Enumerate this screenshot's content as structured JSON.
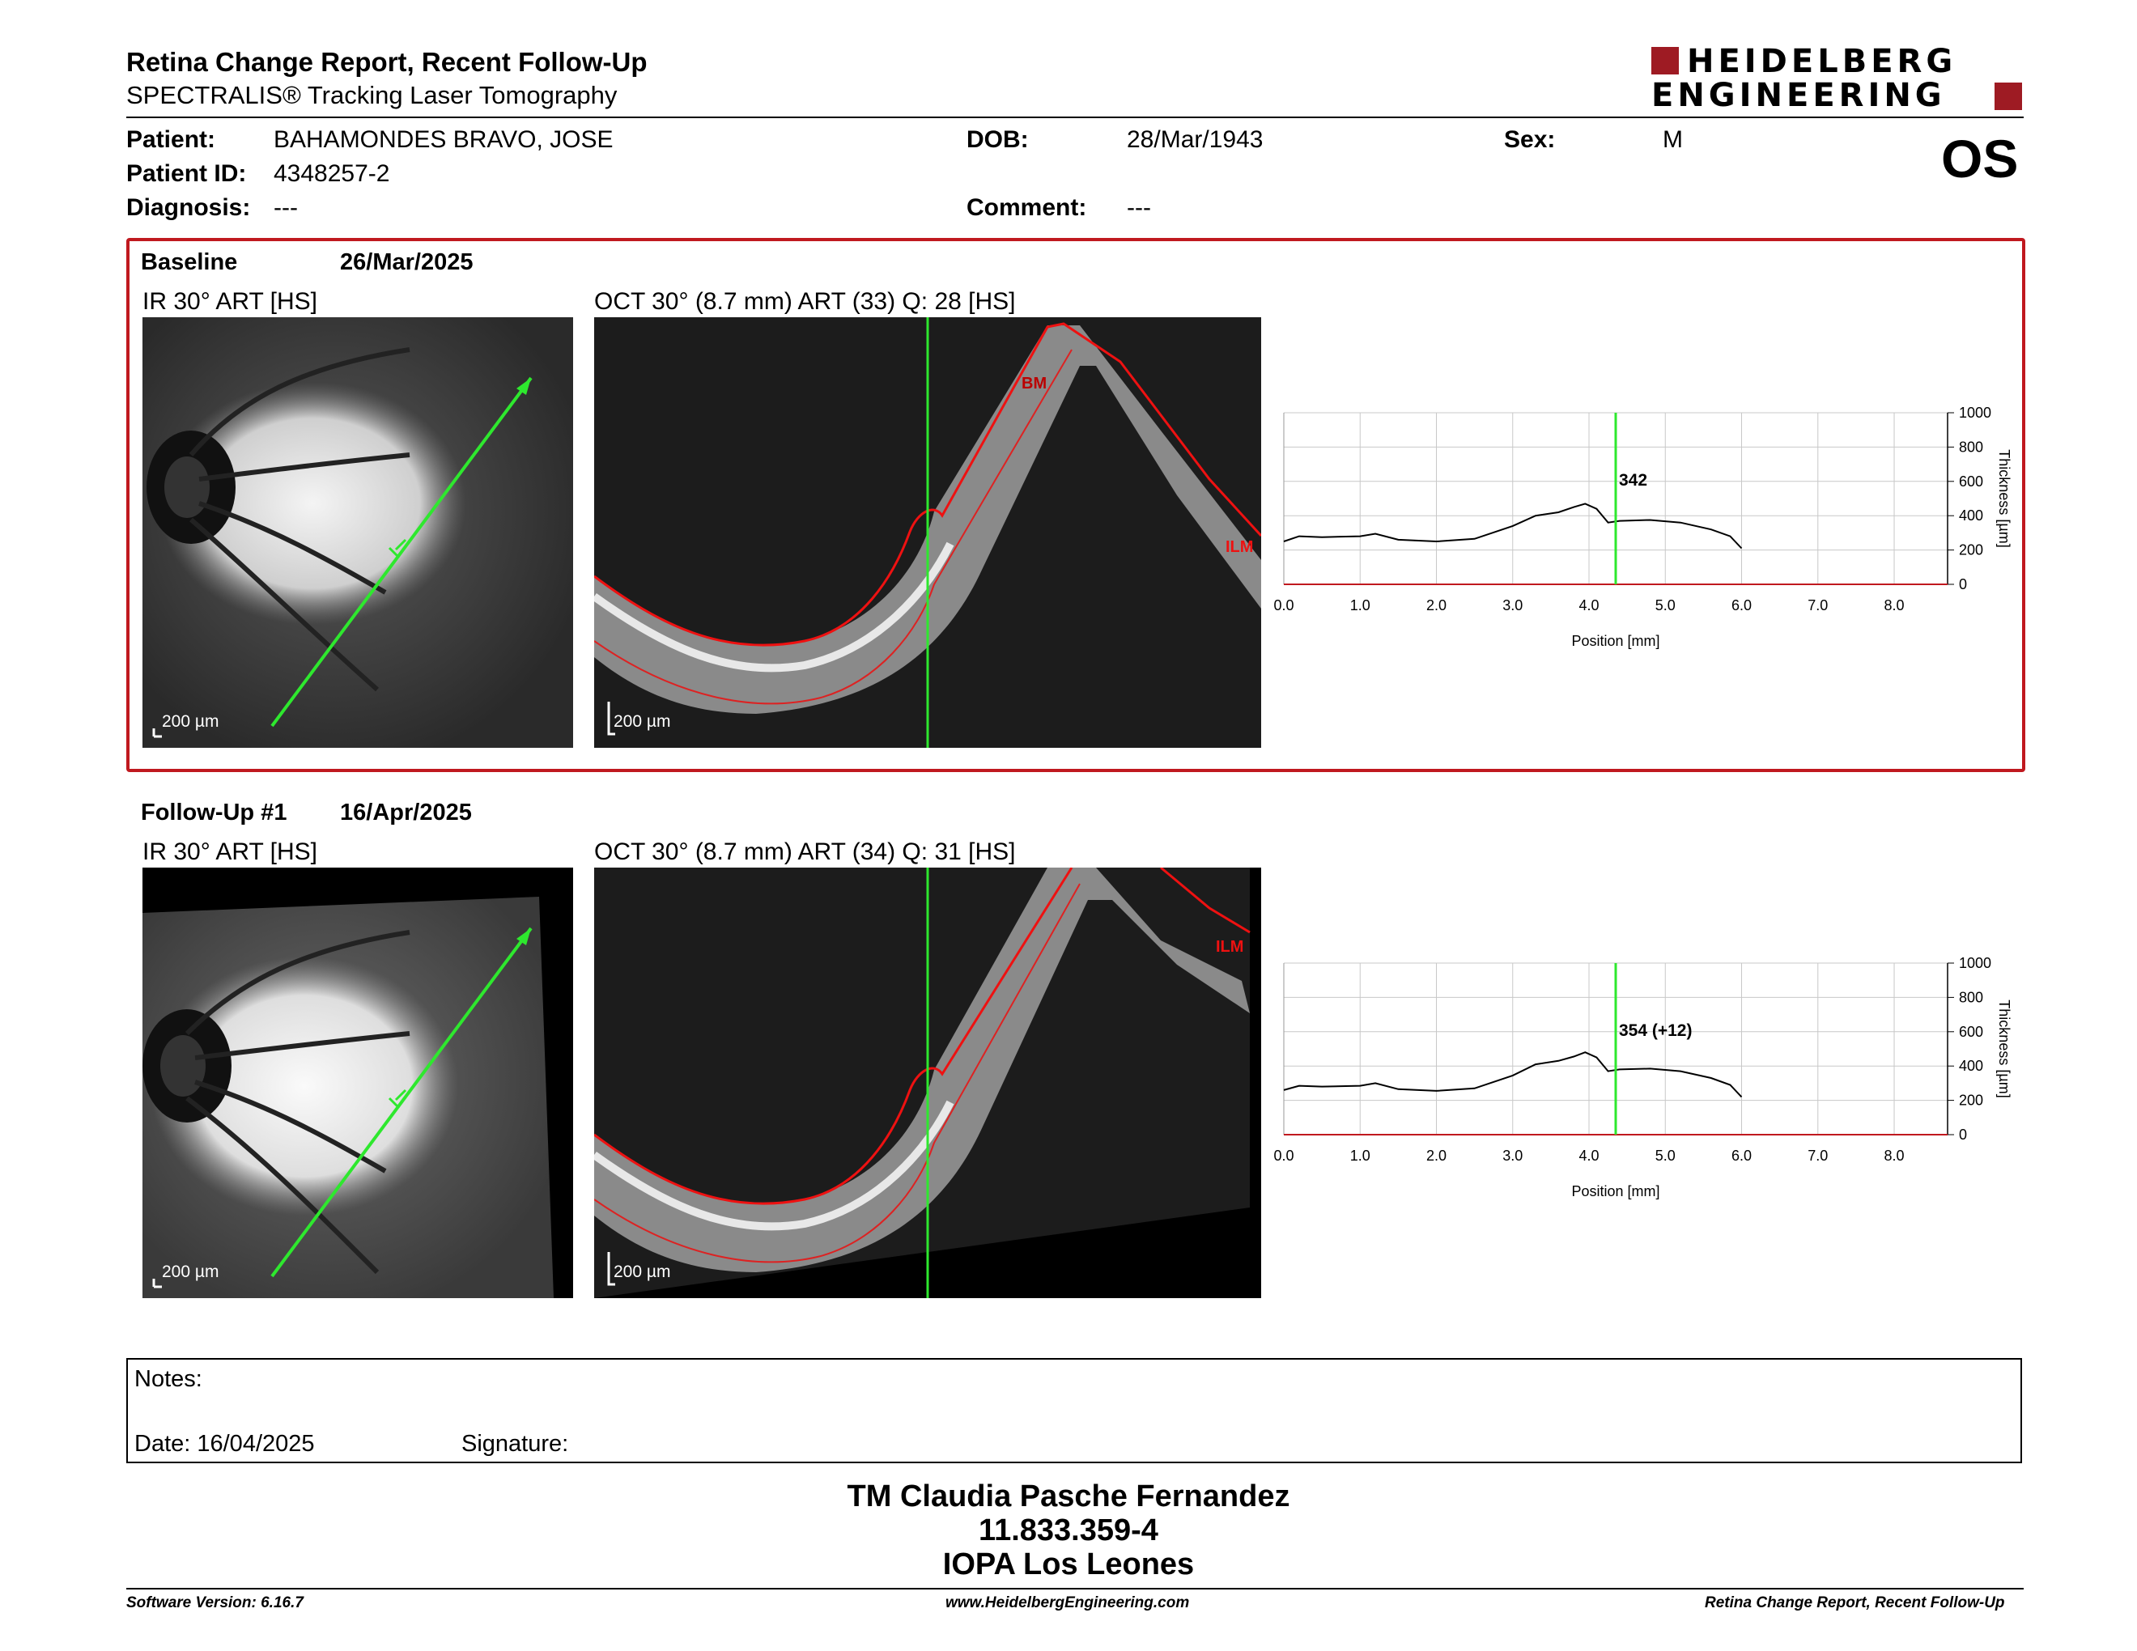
{
  "header": {
    "title": "Retina Change Report, Recent Follow-Up",
    "subtitle": "SPECTRALIS® Tracking Laser Tomography",
    "logo_line1": "HEIDELBERG",
    "logo_line2": "ENGINEERING",
    "eye": "OS"
  },
  "patient": {
    "patient_label": "Patient:",
    "patient_value": "BAHAMONDES BRAVO, JOSE",
    "id_label": "Patient ID:",
    "id_value": "4348257-2",
    "diagnosis_label": "Diagnosis:",
    "diagnosis_value": "---",
    "dob_label": "DOB:",
    "dob_value": "28/Mar/1943",
    "comment_label": "Comment:",
    "comment_value": "---",
    "sex_label": "Sex:",
    "sex_value": "M"
  },
  "baseline": {
    "label": "Baseline",
    "date": "26/Mar/2025",
    "ir_caption": "IR 30° ART [HS]",
    "oct_caption": "OCT 30° (8.7 mm) ART (33) Q: 28 [HS]",
    "scale_ir": "200 µm",
    "scale_oct": "200 µm",
    "bm_label": "BM",
    "ilm_label": "ILM",
    "thickness_label": "342"
  },
  "followup": {
    "label": "Follow-Up #1",
    "date": "16/Apr/2025",
    "ir_caption": "IR 30° ART [HS]",
    "oct_caption": "OCT 30° (8.7 mm) ART (34) Q: 31 [HS]",
    "scale_ir": "200 µm",
    "scale_oct": "200 µm",
    "ilm_label": "ILM",
    "thickness_label": "354 (+12)"
  },
  "chart_data": [
    {
      "type": "line",
      "xlabel": "Position [mm]",
      "ylabel": "Thickness [µm]",
      "xlim": [
        0,
        8.7
      ],
      "ylim": [
        0,
        1000
      ],
      "x_ticks": [
        "0.0",
        "1.0",
        "2.0",
        "3.0",
        "4.0",
        "5.0",
        "6.0",
        "7.0",
        "8.0"
      ],
      "y_ticks": [
        "0",
        "200",
        "400",
        "600",
        "800",
        "1000"
      ],
      "cursor_x": 4.35,
      "series": [
        {
          "x": [
            0,
            0.2,
            0.5,
            1.0,
            1.2,
            1.5,
            2.0,
            2.5,
            3.0,
            3.3,
            3.6,
            3.8,
            3.95,
            4.1,
            4.25,
            4.4,
            4.8,
            5.2,
            5.6,
            5.85,
            6.0
          ],
          "y": [
            250,
            280,
            275,
            280,
            295,
            260,
            250,
            265,
            340,
            400,
            420,
            450,
            470,
            440,
            360,
            370,
            375,
            360,
            320,
            280,
            210
          ]
        }
      ]
    },
    {
      "type": "line",
      "xlabel": "Position [mm]",
      "ylabel": "Thickness [µm]",
      "xlim": [
        0,
        8.7
      ],
      "ylim": [
        0,
        1000
      ],
      "x_ticks": [
        "0.0",
        "1.0",
        "2.0",
        "3.0",
        "4.0",
        "5.0",
        "6.0",
        "7.0",
        "8.0"
      ],
      "y_ticks": [
        "0",
        "200",
        "400",
        "600",
        "800",
        "1000"
      ],
      "cursor_x": 4.35,
      "series": [
        {
          "x": [
            0,
            0.2,
            0.5,
            1.0,
            1.2,
            1.5,
            2.0,
            2.5,
            3.0,
            3.3,
            3.6,
            3.8,
            3.95,
            4.1,
            4.25,
            4.4,
            4.8,
            5.2,
            5.6,
            5.85,
            6.0
          ],
          "y": [
            260,
            285,
            280,
            285,
            300,
            265,
            255,
            270,
            345,
            410,
            430,
            455,
            480,
            450,
            370,
            380,
            385,
            370,
            330,
            290,
            220
          ]
        }
      ]
    }
  ],
  "notes": {
    "notes_label": "Notes:",
    "date_label": "Date: 16/04/2025",
    "signature_label": "Signature:"
  },
  "signature_block": {
    "line1": "TM Claudia Pasche Fernandez",
    "line2": "11.833.359-4",
    "line3": "IOPA Los Leones"
  },
  "footer": {
    "left": "Software Version: 6.16.7",
    "center": "www.HeidelbergEngineering.com",
    "right": "Retina Change Report, Recent Follow-Up"
  }
}
